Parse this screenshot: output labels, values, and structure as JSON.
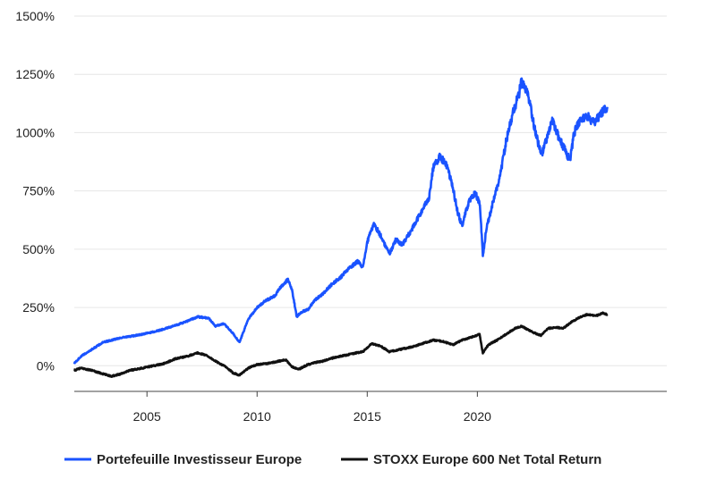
{
  "chart_data": {
    "type": "line",
    "title": "",
    "xlabel": "",
    "ylabel": "",
    "x_ticks": [
      "2005",
      "2010",
      "2015",
      "2020"
    ],
    "y_ticks": [
      "0%",
      "250%",
      "500%",
      "750%",
      "1000%",
      "1250%",
      "1500%"
    ],
    "xlim": [
      2001.7,
      2028.6
    ],
    "ylim": [
      -110,
      1500
    ],
    "grid": "horizontal",
    "legend_position": "bottom",
    "series": [
      {
        "name": "Portefeuille Investisseur Europe",
        "color": "#1a53ff",
        "points": [
          [
            2001.7,
            10
          ],
          [
            2002.0,
            40
          ],
          [
            2002.5,
            70
          ],
          [
            2003.0,
            100
          ],
          [
            2003.4,
            110
          ],
          [
            2003.8,
            120
          ],
          [
            2004.2,
            125
          ],
          [
            2004.8,
            135
          ],
          [
            2005.5,
            150
          ],
          [
            2006.2,
            170
          ],
          [
            2006.8,
            190
          ],
          [
            2007.3,
            210
          ],
          [
            2007.8,
            205
          ],
          [
            2008.1,
            170
          ],
          [
            2008.5,
            180
          ],
          [
            2008.9,
            140
          ],
          [
            2009.2,
            100
          ],
          [
            2009.6,
            200
          ],
          [
            2010.0,
            250
          ],
          [
            2010.4,
            280
          ],
          [
            2010.8,
            300
          ],
          [
            2011.1,
            340
          ],
          [
            2011.4,
            370
          ],
          [
            2011.6,
            320
          ],
          [
            2011.8,
            210
          ],
          [
            2012.0,
            230
          ],
          [
            2012.3,
            240
          ],
          [
            2012.6,
            280
          ],
          [
            2013.0,
            310
          ],
          [
            2013.4,
            350
          ],
          [
            2013.8,
            380
          ],
          [
            2014.2,
            420
          ],
          [
            2014.6,
            450
          ],
          [
            2014.8,
            420
          ],
          [
            2015.0,
            530
          ],
          [
            2015.3,
            610
          ],
          [
            2015.6,
            560
          ],
          [
            2016.0,
            480
          ],
          [
            2016.3,
            540
          ],
          [
            2016.6,
            520
          ],
          [
            2017.0,
            580
          ],
          [
            2017.4,
            650
          ],
          [
            2017.8,
            720
          ],
          [
            2018.0,
            850
          ],
          [
            2018.3,
            900
          ],
          [
            2018.6,
            860
          ],
          [
            2018.9,
            760
          ],
          [
            2019.1,
            660
          ],
          [
            2019.3,
            600
          ],
          [
            2019.6,
            700
          ],
          [
            2019.9,
            740
          ],
          [
            2020.1,
            700
          ],
          [
            2020.2,
            560
          ],
          [
            2020.25,
            470
          ],
          [
            2020.4,
            580
          ],
          [
            2020.7,
            700
          ],
          [
            2021.0,
            800
          ],
          [
            2021.3,
            960
          ],
          [
            2021.6,
            1080
          ],
          [
            2021.9,
            1170
          ],
          [
            2022.0,
            1220
          ],
          [
            2022.3,
            1160
          ],
          [
            2022.6,
            1020
          ],
          [
            2022.9,
            900
          ],
          [
            2023.1,
            960
          ],
          [
            2023.4,
            1050
          ],
          [
            2023.7,
            980
          ],
          [
            2023.9,
            940
          ],
          [
            2024.2,
            880
          ],
          [
            2024.4,
            1000
          ],
          [
            2024.7,
            1060
          ],
          [
            2025.0,
            1070
          ],
          [
            2025.3,
            1040
          ],
          [
            2025.6,
            1080
          ],
          [
            2025.9,
            1110
          ]
        ]
      },
      {
        "name": "STOXX Europe 600 Net Total Return",
        "color": "#111111",
        "points": [
          [
            2001.7,
            -20
          ],
          [
            2002.0,
            -10
          ],
          [
            2002.5,
            -20
          ],
          [
            2003.0,
            -35
          ],
          [
            2003.4,
            -45
          ],
          [
            2003.8,
            -35
          ],
          [
            2004.2,
            -20
          ],
          [
            2004.8,
            -10
          ],
          [
            2005.3,
            0
          ],
          [
            2005.8,
            10
          ],
          [
            2006.3,
            30
          ],
          [
            2006.8,
            40
          ],
          [
            2007.3,
            55
          ],
          [
            2007.7,
            45
          ],
          [
            2008.1,
            20
          ],
          [
            2008.5,
            0
          ],
          [
            2008.9,
            -30
          ],
          [
            2009.2,
            -40
          ],
          [
            2009.6,
            -10
          ],
          [
            2010.0,
            5
          ],
          [
            2010.5,
            10
          ],
          [
            2011.0,
            20
          ],
          [
            2011.3,
            25
          ],
          [
            2011.6,
            -5
          ],
          [
            2011.9,
            -15
          ],
          [
            2012.3,
            5
          ],
          [
            2012.7,
            15
          ],
          [
            2013.0,
            20
          ],
          [
            2013.5,
            35
          ],
          [
            2014.0,
            45
          ],
          [
            2014.5,
            55
          ],
          [
            2014.8,
            60
          ],
          [
            2015.2,
            95
          ],
          [
            2015.6,
            85
          ],
          [
            2016.0,
            60
          ],
          [
            2016.5,
            70
          ],
          [
            2017.0,
            80
          ],
          [
            2017.5,
            95
          ],
          [
            2018.0,
            110
          ],
          [
            2018.4,
            105
          ],
          [
            2018.9,
            90
          ],
          [
            2019.3,
            110
          ],
          [
            2019.8,
            125
          ],
          [
            2020.1,
            135
          ],
          [
            2020.25,
            55
          ],
          [
            2020.5,
            90
          ],
          [
            2020.9,
            110
          ],
          [
            2021.3,
            135
          ],
          [
            2021.7,
            160
          ],
          [
            2022.0,
            170
          ],
          [
            2022.3,
            155
          ],
          [
            2022.6,
            140
          ],
          [
            2022.9,
            130
          ],
          [
            2023.2,
            160
          ],
          [
            2023.6,
            165
          ],
          [
            2023.9,
            160
          ],
          [
            2024.3,
            190
          ],
          [
            2024.7,
            210
          ],
          [
            2025.0,
            220
          ],
          [
            2025.4,
            215
          ],
          [
            2025.7,
            225
          ],
          [
            2025.9,
            220
          ]
        ]
      }
    ]
  }
}
